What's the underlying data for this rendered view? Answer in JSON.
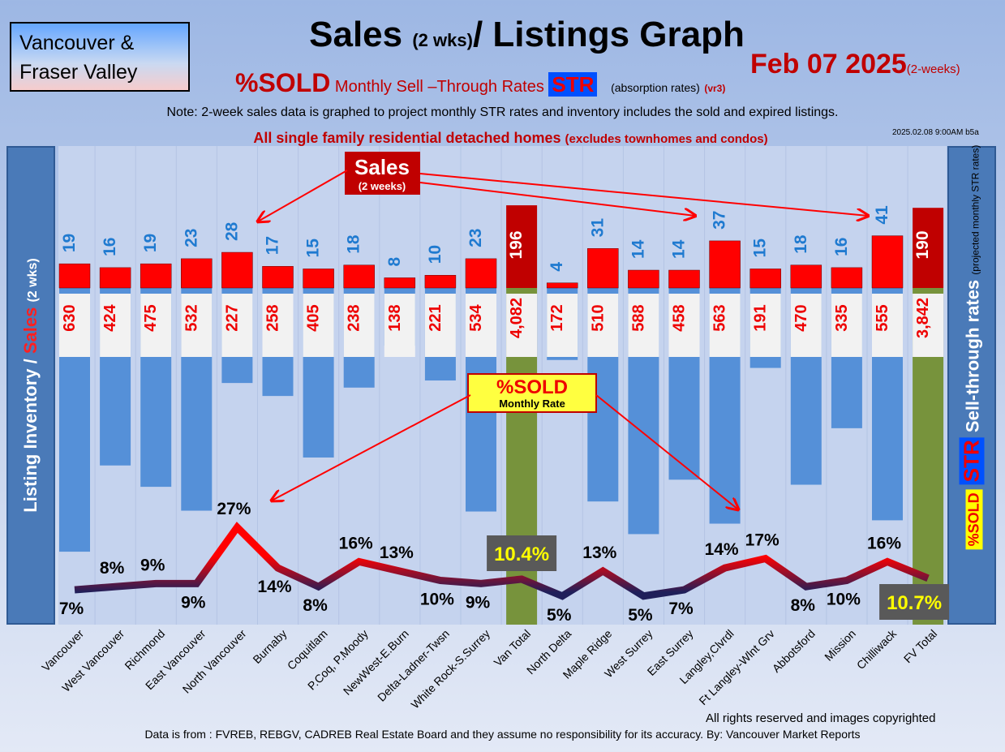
{
  "header": {
    "region": "Vancouver & Fraser Valley",
    "title_main": "Sales",
    "title_small": "(2 wks)",
    "title_rest": "/ Listings Graph",
    "date": "Feb 07  2025",
    "date_note": "(2-weeks)",
    "sold": "%SOLD",
    "str_subtitle": "Monthly Sell –Through Rates",
    "str": "STR",
    "absorption": "(absorption rates)",
    "version": "(vr3)",
    "note": "Note: 2-week sales data is graphed to project monthly STR rates and inventory includes the sold and expired listings.",
    "timestamp": "2025.02.08 9:00AM b5a",
    "scope": "All single family residential detached homes",
    "scope_note": "(excludes townhomes and condos)"
  },
  "left_axis": {
    "listing": "Listing Inventory /",
    "sales": "Sales",
    "wks": "(2 wks)"
  },
  "right_axis": {
    "label": "Sell-through rates",
    "note": "(projected monthly STR rates)",
    "str": "STR",
    "sold": "%SOLD"
  },
  "callouts": {
    "sales": "Sales",
    "sales_sub": "(2 weeks)",
    "sold": "%SOLD",
    "sold_sub": "Monthly Rate"
  },
  "footer": {
    "rights": "All rights reserved and  images copyrighted",
    "source": "Data is from : FVREB, REBGV, CADREB Real Estate Board and they assume no responsibility for its accuracy. By: Vancouver Market Reports"
  },
  "chart_data": {
    "type": "bar",
    "title": "Sales (2 wks)/ Listings Graph",
    "categories": [
      "Vancouver",
      "West Vancouver",
      "Richmond",
      "East Vancouver",
      "North Vancouver",
      "Burnaby",
      "Coquitlam",
      "P.Coq, P.Moody",
      "NewWest-E.Burn",
      "Delta-Ladner-Twsn",
      "White Rock-S.Surrey",
      "Van Total",
      "North Delta",
      "Maple Ridge",
      "West Surrey",
      "East Surrey",
      "Langley,Clvrdl",
      "Ft Langley-Wlnt Grv",
      "Abbotsford",
      "Mission",
      "Chilliwack",
      "FV Total"
    ],
    "series": [
      {
        "name": "Sales (2 wks)",
        "values": [
          19,
          16,
          19,
          23,
          28,
          17,
          15,
          18,
          8,
          10,
          23,
          196,
          4,
          31,
          14,
          14,
          37,
          15,
          18,
          16,
          41,
          190
        ]
      },
      {
        "name": "Listing Inventory",
        "values": [
          630,
          424,
          475,
          532,
          227,
          258,
          405,
          238,
          138,
          221,
          534,
          4082,
          172,
          510,
          588,
          458,
          563,
          191,
          470,
          335,
          555,
          3842
        ],
        "labels": [
          "630",
          "424",
          "475",
          "532",
          "227",
          "258",
          "405",
          "238",
          "138",
          "221",
          "534",
          "4,082",
          "172",
          "510",
          "588",
          "458",
          "563",
          "191",
          "470",
          "335",
          "555",
          "3,842"
        ]
      },
      {
        "name": "%SOLD Monthly Rate",
        "values": [
          7,
          8,
          9,
          9,
          27,
          14,
          8,
          16,
          13,
          10,
          9,
          10.4,
          5,
          13,
          5,
          7,
          14,
          17,
          8,
          10,
          16,
          10.7
        ],
        "labels": [
          "7%",
          "8%",
          "9%",
          "9%",
          "27%",
          "14%",
          "8%",
          "16%",
          "13%",
          "10%",
          "9%",
          "10.4%",
          "5%",
          "13%",
          "5%",
          "7%",
          "14%",
          "17%",
          "8%",
          "10%",
          "16%",
          "10.7%"
        ]
      }
    ],
    "totals": [
      "Van Total",
      "FV Total"
    ],
    "colors": {
      "sales": "#ff0000",
      "inventory": "#5590d8",
      "total": "#77933c",
      "line_high": "#ff0000",
      "line_low": "#1f1f5a"
    }
  }
}
